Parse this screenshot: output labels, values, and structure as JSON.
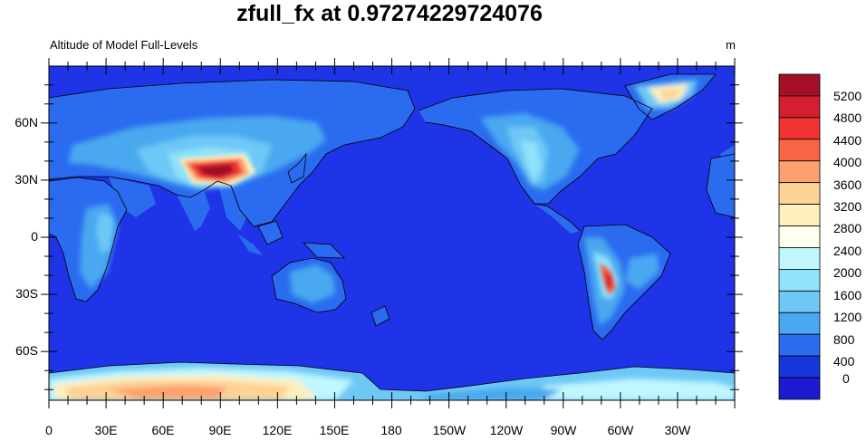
{
  "title": "zfull_fx at 0.97274229724076",
  "left_string": "Altitude of Model Full-Levels",
  "right_string": "m",
  "map": {
    "projection": "cylindrical-equidistant",
    "center_longitude": 180,
    "ocean_color": "#1e34e6",
    "x_tick_labels": [
      "0",
      "30E",
      "60E",
      "90E",
      "120E",
      "150E",
      "180",
      "150W",
      "120W",
      "90W",
      "60W",
      "30W"
    ],
    "y_tick_labels": [
      "60N",
      "30N",
      "0",
      "30S",
      "60S"
    ]
  },
  "colorbar": {
    "labels": [
      "5200",
      "4800",
      "4400",
      "4000",
      "3600",
      "3200",
      "2800",
      "2400",
      "2000",
      "1600",
      "1200",
      "800",
      "400",
      "0"
    ],
    "colors": [
      "#a50f28",
      "#d41f30",
      "#f03232",
      "#fa6446",
      "#fca06e",
      "#fdd294",
      "#fff0be",
      "#fffff0",
      "#c0f6fe",
      "#91e2fa",
      "#6ec8f5",
      "#4aa8f0",
      "#2a6bf0",
      "#1637dc",
      "#1c1ad2"
    ]
  }
}
